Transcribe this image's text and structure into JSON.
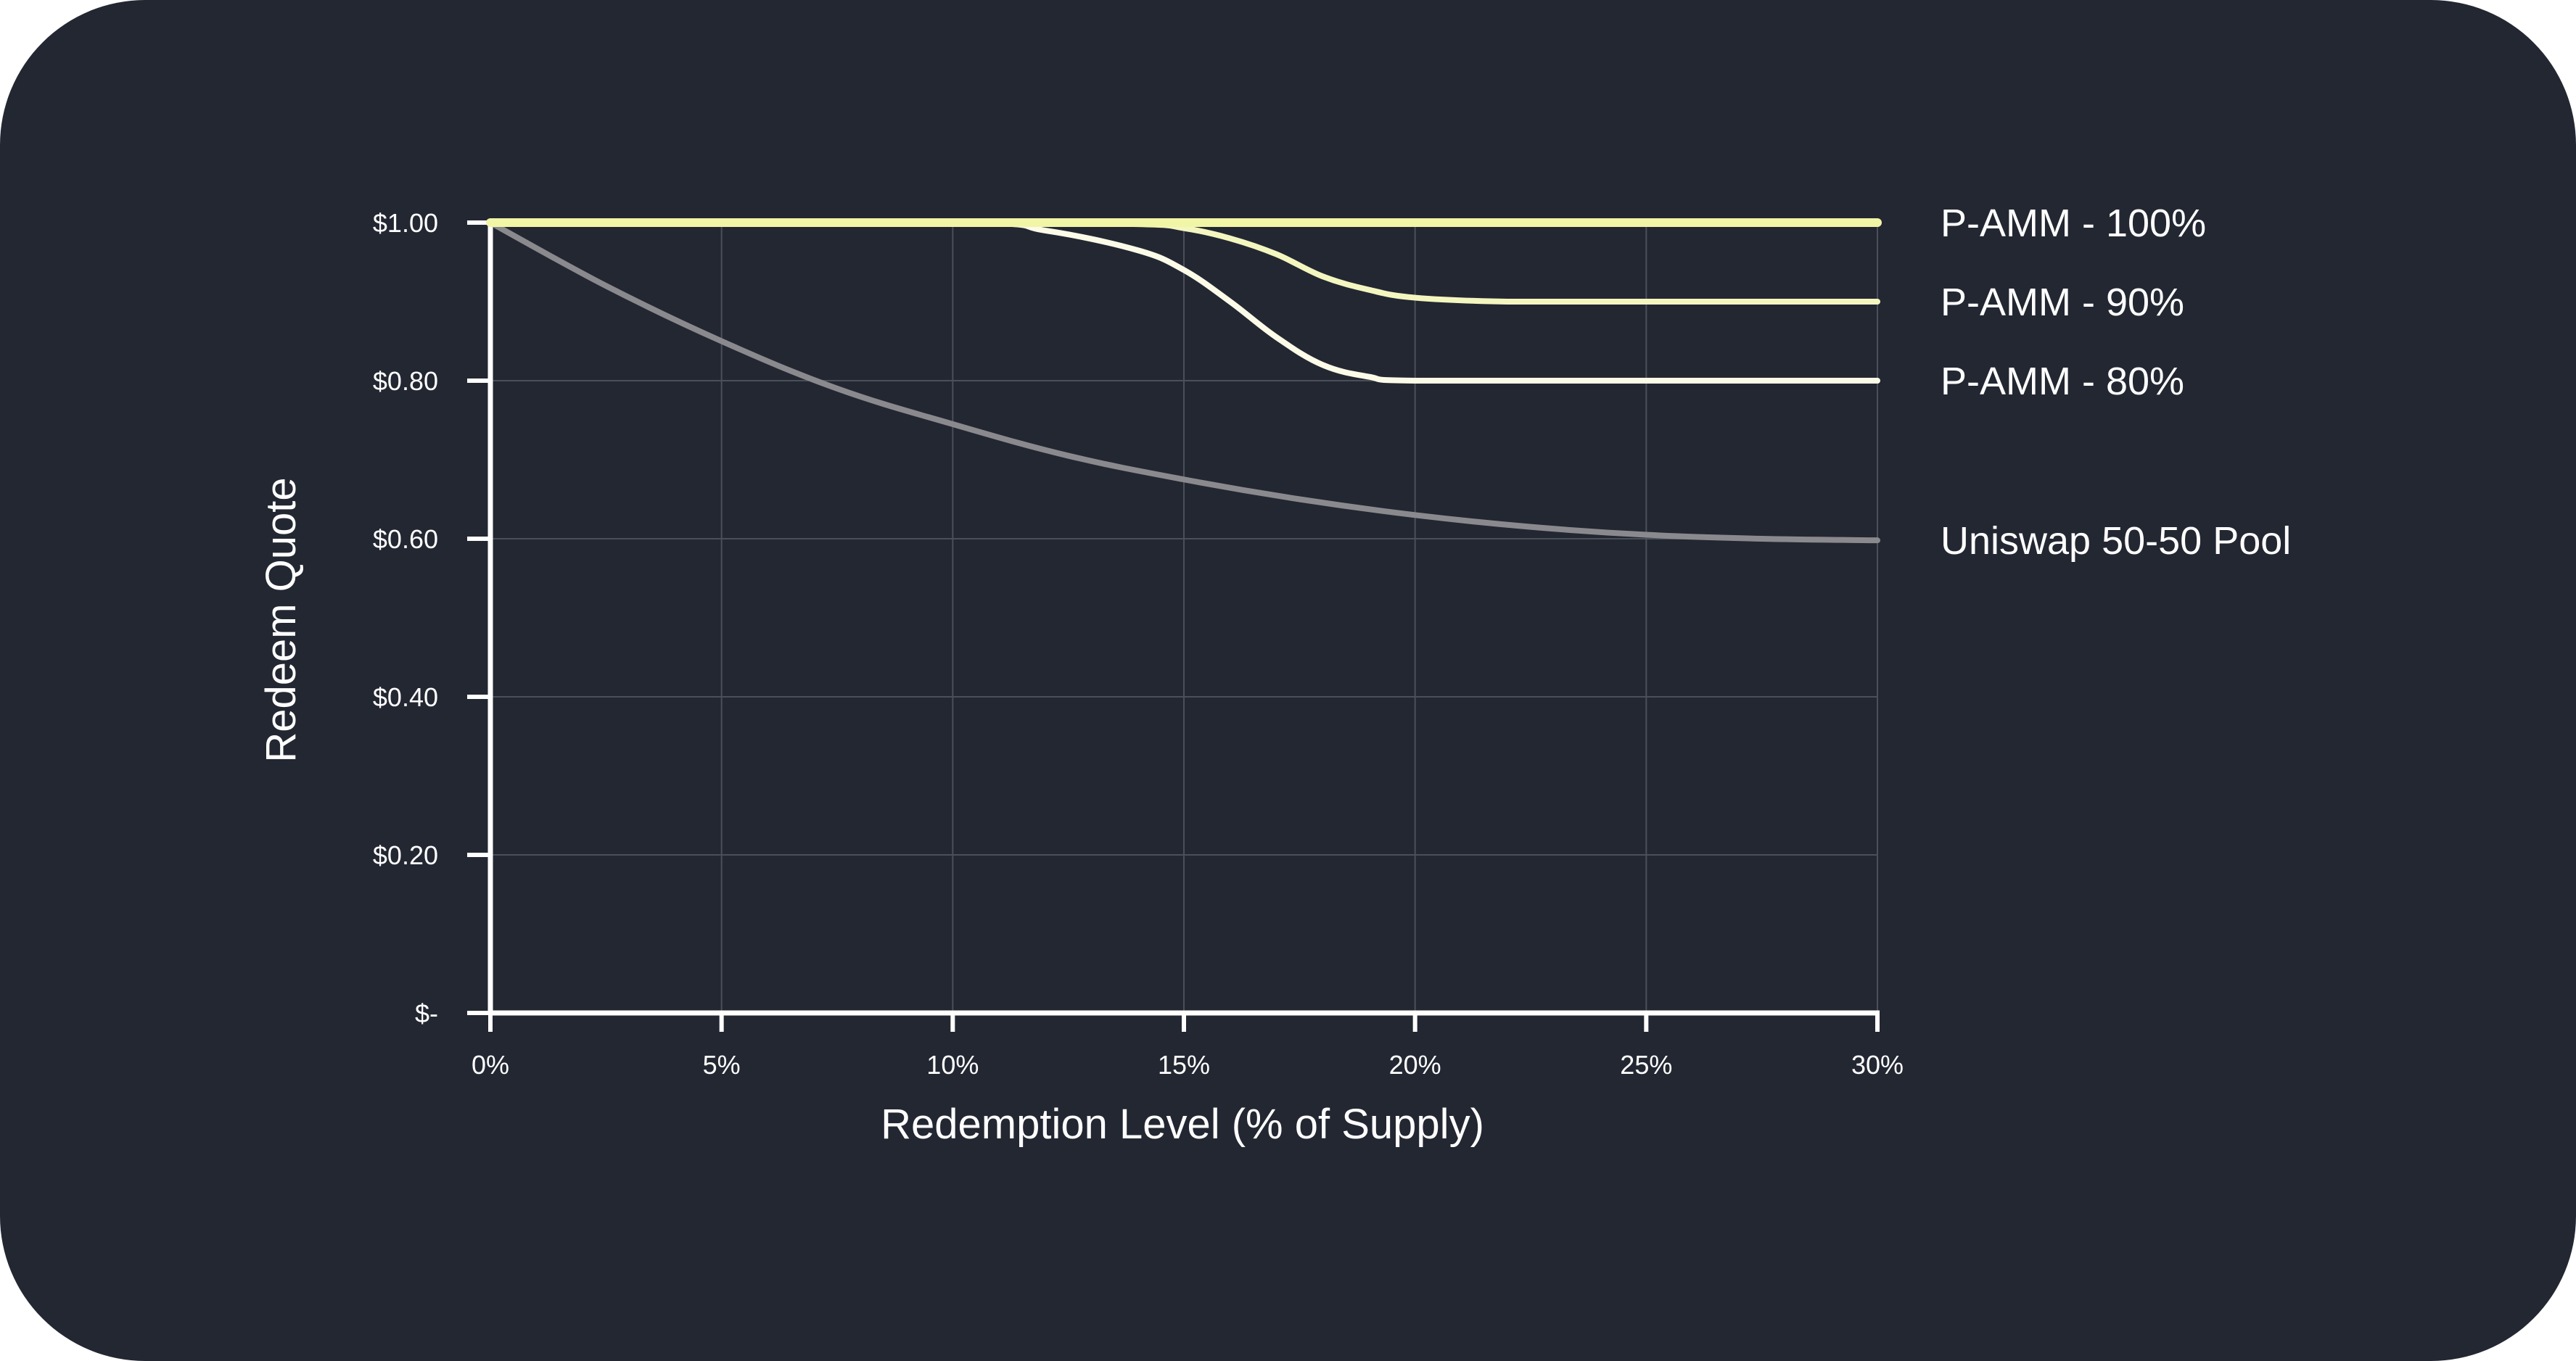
{
  "chart_data": {
    "type": "line",
    "title": "",
    "xlabel": "Redemption Level (% of Supply)",
    "ylabel": "Redeem Quote",
    "xlim": [
      0,
      30
    ],
    "ylim": [
      0,
      1
    ],
    "x_ticks": [
      0,
      5,
      10,
      15,
      20,
      25,
      30
    ],
    "x_tick_labels": [
      "0%",
      "5%",
      "10%",
      "15%",
      "20%",
      "25%",
      "30%"
    ],
    "y_ticks": [
      0,
      0.2,
      0.4,
      0.6,
      0.8,
      1.0
    ],
    "y_tick_labels": [
      "$-",
      "$0.20",
      "$0.40",
      "$0.60",
      "$0.80",
      "$1.00"
    ],
    "grid": true,
    "legend": "right, labels at line ends",
    "series": [
      {
        "name": "Uniswap 50-50 Pool",
        "color": "#8a8a8e",
        "x": [
          0,
          2.5,
          5,
          7.5,
          10,
          12.5,
          15,
          17.5,
          20,
          22.5,
          25,
          27.5,
          30
        ],
        "y": [
          1.0,
          0.92,
          0.85,
          0.79,
          0.745,
          0.705,
          0.675,
          0.65,
          0.63,
          0.615,
          0.605,
          0.6,
          0.598
        ]
      },
      {
        "name": "P-AMM - 80%",
        "color": "#fbfbe8",
        "x": [
          0,
          10,
          12,
          14,
          15,
          16,
          17,
          18,
          19,
          20,
          25,
          30
        ],
        "y": [
          1.0,
          1.0,
          0.99,
          0.965,
          0.94,
          0.9,
          0.855,
          0.82,
          0.805,
          0.8,
          0.8,
          0.8
        ]
      },
      {
        "name": "P-AMM - 90%",
        "color": "#f4f6c0",
        "x": [
          0,
          10,
          14,
          15,
          16,
          17,
          18,
          19,
          20,
          22,
          25,
          30
        ],
        "y": [
          1.0,
          1.0,
          0.998,
          0.993,
          0.98,
          0.96,
          0.932,
          0.915,
          0.905,
          0.9,
          0.9,
          0.9
        ]
      },
      {
        "name": "P-AMM - 100%",
        "color": "#f1f5a6",
        "x": [
          0,
          30
        ],
        "y": [
          1.0,
          1.0
        ]
      }
    ]
  }
}
